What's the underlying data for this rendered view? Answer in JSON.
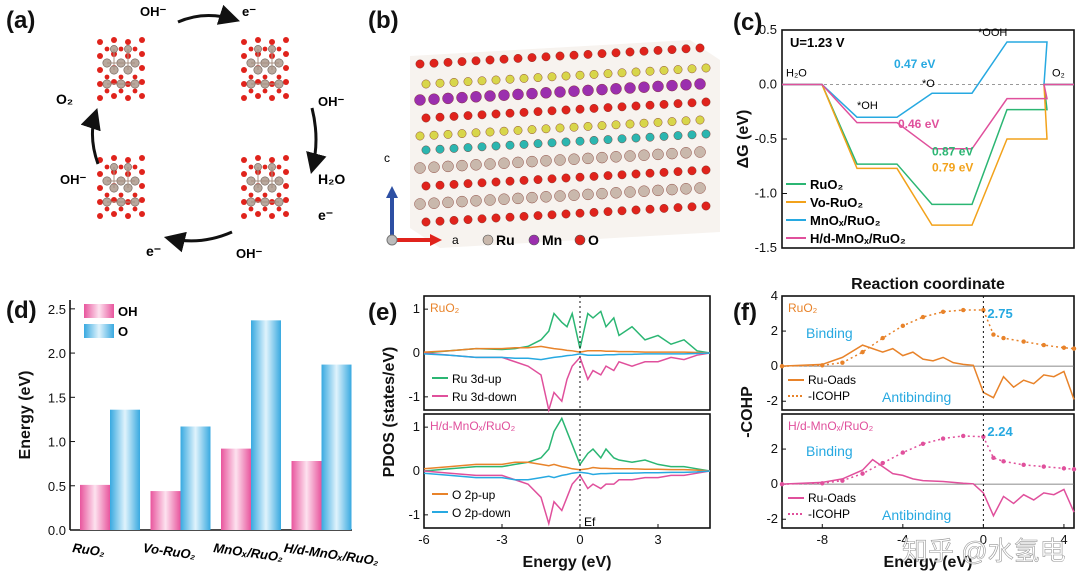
{
  "panels": {
    "a": {
      "label": "(a)",
      "cycle": [
        {
          "species": "OH",
          "sup": "-",
          "arrow_to": "e",
          "arrow_sup": "-"
        },
        {
          "species": "OH",
          "sup": "-",
          "release": "H₂O",
          "release2": "e⁻"
        },
        {
          "species": "OH",
          "sup": "-",
          "release": "e⁻"
        },
        {
          "species": "OH",
          "sup": "-",
          "release": "O₂"
        }
      ],
      "texts": {
        "top_oh": "OH⁻",
        "top_e": "e⁻",
        "right_oh": "OH⁻",
        "right_h2o": "H₂O",
        "right_e": "e⁻",
        "bottom_oh": "OH⁻",
        "bottom_e": "e⁻",
        "left_oh": "OH⁻",
        "left_o2": "O₂"
      }
    },
    "b": {
      "label": "(b)",
      "axis_c": "c",
      "axis_a": "a",
      "legend": [
        {
          "name": "Ru",
          "color": "#c9b8ac"
        },
        {
          "name": "Mn",
          "color": "#9b2fae"
        },
        {
          "name": "O",
          "color": "#e0231c"
        }
      ]
    },
    "watermark": "知乎 @水氢电"
  },
  "chart_data": [
    {
      "id": "c",
      "label": "(c)",
      "type": "line",
      "title": "U=1.23 V",
      "xlabel": "Reaction coordinate",
      "ylabel": "ΔG (eV)",
      "ylim": [
        -1.5,
        0.5
      ],
      "yticks": [
        0.5,
        0.0,
        -0.5,
        -1.0,
        -1.5
      ],
      "ytick_labels": [
        "0.5",
        "0.0",
        "-0.5",
        "-1.0",
        "-1.5"
      ],
      "steps": [
        "H₂O",
        "*OH",
        "*O",
        "*OOH",
        "O₂"
      ],
      "step_annotations": {
        "H2O": "H₂O",
        "OH": "*OH",
        "O": "*O",
        "OOH": "*OOH",
        "O2": "O₂"
      },
      "series": [
        {
          "name": "RuO₂",
          "color": "#2bb673",
          "values": [
            0,
            -0.73,
            -1.1,
            -0.23,
            0
          ],
          "barrier": "0.87 eV",
          "barrier_at": "*O→*OOH"
        },
        {
          "name": "Vo-RuO₂",
          "color": "#f2a21b",
          "values": [
            0,
            -0.77,
            -1.29,
            -0.5,
            0
          ],
          "barrier": "0.79 eV",
          "barrier_at": "*O→*OOH"
        },
        {
          "name": "MnOₓ/RuO₂",
          "color": "#27a9e1",
          "values": [
            0,
            -0.3,
            -0.08,
            0.39,
            0
          ],
          "barrier": "0.47 eV",
          "barrier_at": "*O→*OOH"
        },
        {
          "name": "H/d-MnOₓ/RuO₂",
          "color": "#e0509c",
          "values": [
            0,
            -0.35,
            -0.59,
            -0.13,
            0
          ],
          "barrier": "0.46 eV",
          "barrier_at": "*O→*OOH"
        }
      ]
    },
    {
      "id": "d",
      "label": "(d)",
      "type": "bar",
      "title": "",
      "xlabel": "",
      "ylabel": "Energy (eV)",
      "ylim": [
        0,
        2.6
      ],
      "yticks": [
        0,
        0.5,
        1.0,
        1.5,
        2.0,
        2.5
      ],
      "ytick_labels": [
        "0.0",
        "0.5",
        "1.0",
        "1.5",
        "2.0",
        "2.5"
      ],
      "categories": [
        "RuO₂",
        "Vo-RuO₂",
        "MnOₓ/RuO₂",
        "H/d-MnOₓ/RuO₂"
      ],
      "series": [
        {
          "name": "OH",
          "color": "#e8559d",
          "values": [
            0.51,
            0.44,
            0.92,
            0.78
          ]
        },
        {
          "name": "O",
          "color": "#38a9e0",
          "values": [
            1.36,
            1.17,
            2.37,
            1.87
          ]
        }
      ]
    },
    {
      "id": "e",
      "label": "(e)",
      "type": "line",
      "xlabel": "Energy (eV)",
      "ylabel": "PDOS (states/eV)",
      "xlim": [
        -6,
        5
      ],
      "xticks": [
        -6,
        -3,
        0,
        3
      ],
      "xtick_labels": [
        "-6",
        "-3",
        "0",
        "3"
      ],
      "fermi_label": "Ef",
      "subplots": [
        {
          "title": "RuO₂",
          "title_color": "#e8832a",
          "ylim": [
            -1.3,
            1.3
          ],
          "yticks": [
            1,
            0,
            -1
          ],
          "ytick_labels": [
            "1",
            "0",
            "-1"
          ],
          "x": [
            -6,
            -5,
            -4,
            -3,
            -2.5,
            -2,
            -1.5,
            -1.2,
            -1,
            -0.7,
            -0.5,
            -0.3,
            0,
            0.3,
            0.5,
            0.8,
            1,
            1.3,
            1.5,
            2,
            2.5,
            3,
            3.5,
            4,
            4.5,
            5
          ],
          "series": [
            {
              "name": "Ru 3d-up",
              "color": "#2bb673",
              "values": [
                0.0,
                0.05,
                0.1,
                0.08,
                0.1,
                0.15,
                0.3,
                0.5,
                0.9,
                0.7,
                0.6,
                0.9,
                0.1,
                0.9,
                0.8,
                0.95,
                0.6,
                0.8,
                0.4,
                0.6,
                0.3,
                0.4,
                0.2,
                0.3,
                0.05,
                0.0
              ]
            },
            {
              "name": "Ru 3d-down",
              "color": "#e0509c",
              "values": [
                0.0,
                -0.05,
                -0.1,
                -0.1,
                -0.2,
                -0.3,
                -0.5,
                -1.3,
                -0.9,
                -1.1,
                -0.6,
                -0.3,
                -0.1,
                -0.6,
                -0.4,
                -0.5,
                -0.3,
                -0.4,
                -0.2,
                -0.3,
                -0.2,
                -0.2,
                -0.1,
                -0.15,
                -0.05,
                0.0
              ]
            },
            {
              "name": "O 2p",
              "color": "#e8832a",
              "values": [
                0.02,
                0.05,
                0.1,
                0.1,
                0.12,
                0.12,
                0.15,
                0.12,
                0.1,
                0.08,
                0.06,
                0.05,
                0.02,
                0.05,
                0.05,
                0.05,
                0.04,
                0.04,
                0.03,
                0.03,
                0.02,
                0.02,
                0.02,
                0.02,
                0.01,
                0.0
              ]
            },
            {
              "name": "O 2p-down",
              "color": "#27a9e1",
              "values": [
                -0.02,
                -0.05,
                -0.1,
                -0.1,
                -0.12,
                -0.12,
                -0.15,
                -0.12,
                -0.1,
                -0.08,
                -0.06,
                -0.05,
                -0.02,
                -0.05,
                -0.05,
                -0.05,
                -0.04,
                -0.04,
                -0.03,
                -0.03,
                -0.02,
                -0.02,
                -0.02,
                -0.02,
                -0.01,
                0.0
              ]
            }
          ],
          "legend": [
            "Ru 3d-up",
            "Ru 3d-down"
          ]
        },
        {
          "title": "H/d-MnOₓ/RuO₂",
          "title_color": "#e0509c",
          "ylim": [
            -1.3,
            1.3
          ],
          "yticks": [
            1,
            0,
            -1
          ],
          "ytick_labels": [
            "1",
            "0",
            "-1"
          ],
          "x": [
            -6,
            -5,
            -4,
            -3,
            -2.5,
            -2,
            -1.5,
            -1.2,
            -1,
            -0.7,
            -0.5,
            -0.3,
            0,
            0.3,
            0.5,
            0.8,
            1,
            1.3,
            1.5,
            2,
            2.5,
            3,
            3.5,
            4,
            4.5,
            5
          ],
          "series": [
            {
              "name": "Ru 3d-up",
              "color": "#2bb673",
              "values": [
                0.0,
                0.05,
                0.1,
                0.1,
                0.15,
                0.2,
                0.3,
                0.5,
                0.9,
                1.2,
                0.9,
                0.6,
                0.15,
                0.4,
                0.5,
                0.3,
                0.5,
                0.3,
                0.25,
                0.2,
                0.25,
                0.15,
                0.1,
                0.1,
                0.05,
                0.0
              ]
            },
            {
              "name": "Ru 3d-down",
              "color": "#e0509c",
              "values": [
                0.0,
                -0.05,
                -0.1,
                -0.1,
                -0.2,
                -0.3,
                -0.6,
                -1.2,
                -0.7,
                -0.9,
                -0.6,
                -0.3,
                -0.1,
                -0.4,
                -0.3,
                -0.4,
                -0.3,
                -0.3,
                -0.2,
                -0.2,
                -0.15,
                -0.15,
                -0.1,
                -0.1,
                -0.05,
                0.0
              ]
            },
            {
              "name": "O 2p-up",
              "color": "#e8832a",
              "values": [
                0.05,
                0.1,
                0.15,
                0.15,
                0.2,
                0.2,
                0.15,
                0.12,
                0.15,
                0.1,
                0.08,
                0.05,
                0.03,
                0.05,
                0.08,
                0.06,
                0.06,
                0.05,
                0.05,
                0.05,
                0.04,
                0.04,
                0.03,
                0.03,
                0.02,
                0.0
              ]
            },
            {
              "name": "O 2p-down",
              "color": "#27a9e1",
              "values": [
                -0.05,
                -0.1,
                -0.15,
                -0.15,
                -0.2,
                -0.2,
                -0.15,
                -0.12,
                -0.15,
                -0.1,
                -0.08,
                -0.05,
                -0.03,
                -0.05,
                -0.08,
                -0.06,
                -0.06,
                -0.05,
                -0.05,
                -0.05,
                -0.04,
                -0.04,
                -0.03,
                -0.03,
                -0.02,
                0.0
              ]
            }
          ],
          "legend": [
            "O 2p-up",
            "O 2p-down"
          ]
        }
      ]
    },
    {
      "id": "f",
      "label": "(f)",
      "type": "line",
      "xlabel": "Energy (eV)",
      "ylabel": "-COHP",
      "xlim": [
        -10,
        4.5
      ],
      "xticks": [
        -8,
        -4,
        0,
        4
      ],
      "xtick_labels": [
        "-8",
        "-4",
        "0",
        "4"
      ],
      "subplots": [
        {
          "title": "RuO₂",
          "title_color": "#e8832a",
          "ylim": [
            -2.5,
            4
          ],
          "yticks": [
            4,
            2,
            0,
            -2
          ],
          "ytick_labels": [
            "4",
            "2",
            "0",
            "-2"
          ],
          "icohp_value": "2.75",
          "binding_label": "Binding",
          "antibinding_label": "Antibinding",
          "legend": [
            "Ru-Oads",
            "-ICOHP"
          ],
          "legend_sub": "ads",
          "cohp": {
            "x": [
              -10,
              -8,
              -7,
              -6,
              -5,
              -4.5,
              -4,
              -3.5,
              -3,
              -2.5,
              -2,
              -1.5,
              -1,
              -0.5,
              0,
              0.5,
              1,
              1.5,
              2,
              2.5,
              3,
              3.5,
              4,
              4.5
            ],
            "values": [
              0,
              0.1,
              0.5,
              1.2,
              0.8,
              1.0,
              0.6,
              0.8,
              0.4,
              0.3,
              0.5,
              0.2,
              0.1,
              0.05,
              -1.5,
              -1.8,
              -0.6,
              -1.2,
              -0.8,
              -1.0,
              -0.5,
              -0.6,
              -0.3,
              -1.9
            ],
            "color": "#e8832a"
          },
          "icohp": {
            "x": [
              -10,
              -8,
              -7,
              -6,
              -5,
              -4,
              -3,
              -2,
              -1,
              0,
              0.5,
              1,
              2,
              3,
              4,
              4.5
            ],
            "values": [
              0,
              0.05,
              0.2,
              0.8,
              1.6,
              2.3,
              2.8,
              3.1,
              3.2,
              3.2,
              1.8,
              1.6,
              1.4,
              1.2,
              1.05,
              1.0
            ],
            "color": "#e8832a"
          }
        },
        {
          "title": "H/d-MnOₓ/RuO₂",
          "title_color": "#e0509c",
          "ylim": [
            -2.5,
            4
          ],
          "yticks": [
            2,
            0,
            -2
          ],
          "ytick_labels": [
            "2",
            "0",
            "-2"
          ],
          "icohp_value": "2.24",
          "binding_label": "Binding",
          "antibinding_label": "Antibinding",
          "legend": [
            "Ru-Oads",
            "-ICOHP"
          ],
          "legend_sub": "ads",
          "cohp": {
            "x": [
              -10,
              -8,
              -7,
              -6,
              -5.5,
              -5,
              -4.5,
              -4,
              -3.5,
              -3,
              -2,
              -1.5,
              -1,
              -0.5,
              0,
              0.5,
              1,
              1.5,
              2,
              2.5,
              3,
              3.5,
              4,
              4.5
            ],
            "values": [
              0,
              0.1,
              0.3,
              0.8,
              1.4,
              1.0,
              0.6,
              0.5,
              0.3,
              0.2,
              0.15,
              0.1,
              0.05,
              0.02,
              -0.5,
              -1.8,
              -0.7,
              -1.1,
              -0.6,
              -0.9,
              -0.5,
              -0.6,
              -0.3,
              -1.6
            ],
            "color": "#e0509c"
          },
          "icohp": {
            "x": [
              -10,
              -8,
              -7,
              -6,
              -5,
              -4,
              -3,
              -2,
              -1,
              0,
              0.5,
              1,
              2,
              3,
              4,
              4.5
            ],
            "values": [
              0,
              0.05,
              0.2,
              0.6,
              1.2,
              1.8,
              2.3,
              2.6,
              2.75,
              2.7,
              1.5,
              1.3,
              1.1,
              1.0,
              0.9,
              0.85
            ],
            "color": "#e0509c"
          }
        }
      ]
    }
  ]
}
